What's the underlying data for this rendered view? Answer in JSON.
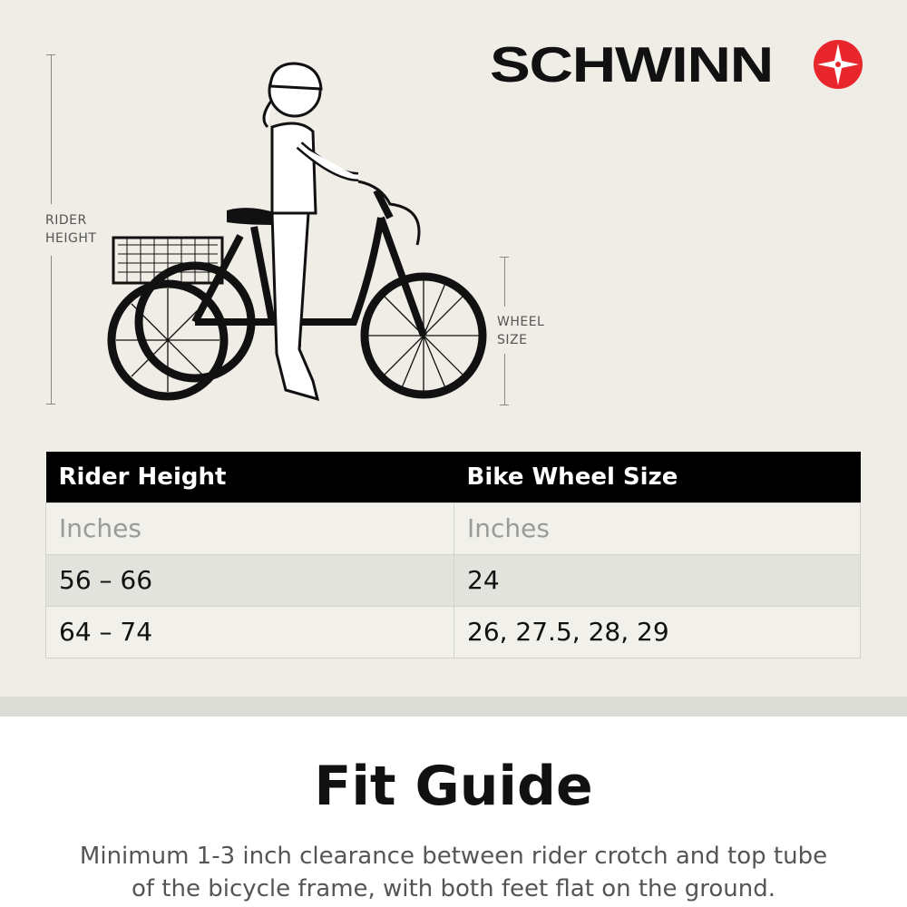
{
  "brand": {
    "name": "SCHWINN",
    "accent": "#e8262b"
  },
  "illustration": {
    "rider_height_label": [
      "RIDER",
      "HEIGHT"
    ],
    "wheel_size_label": [
      "WHEEL",
      "SIZE"
    ]
  },
  "table": {
    "headers": [
      "Rider Height",
      "Bike Wheel Size"
    ],
    "units": [
      "Inches",
      "Inches"
    ],
    "rows": [
      [
        "56 – 66",
        "24"
      ],
      [
        "64 – 74",
        "26, 27.5, 28, 29"
      ]
    ]
  },
  "title": "Fit Guide",
  "description": [
    "Minimum 1-3 inch clearance between rider crotch and top tube",
    "of the bicycle frame, with both feet flat on the ground."
  ]
}
